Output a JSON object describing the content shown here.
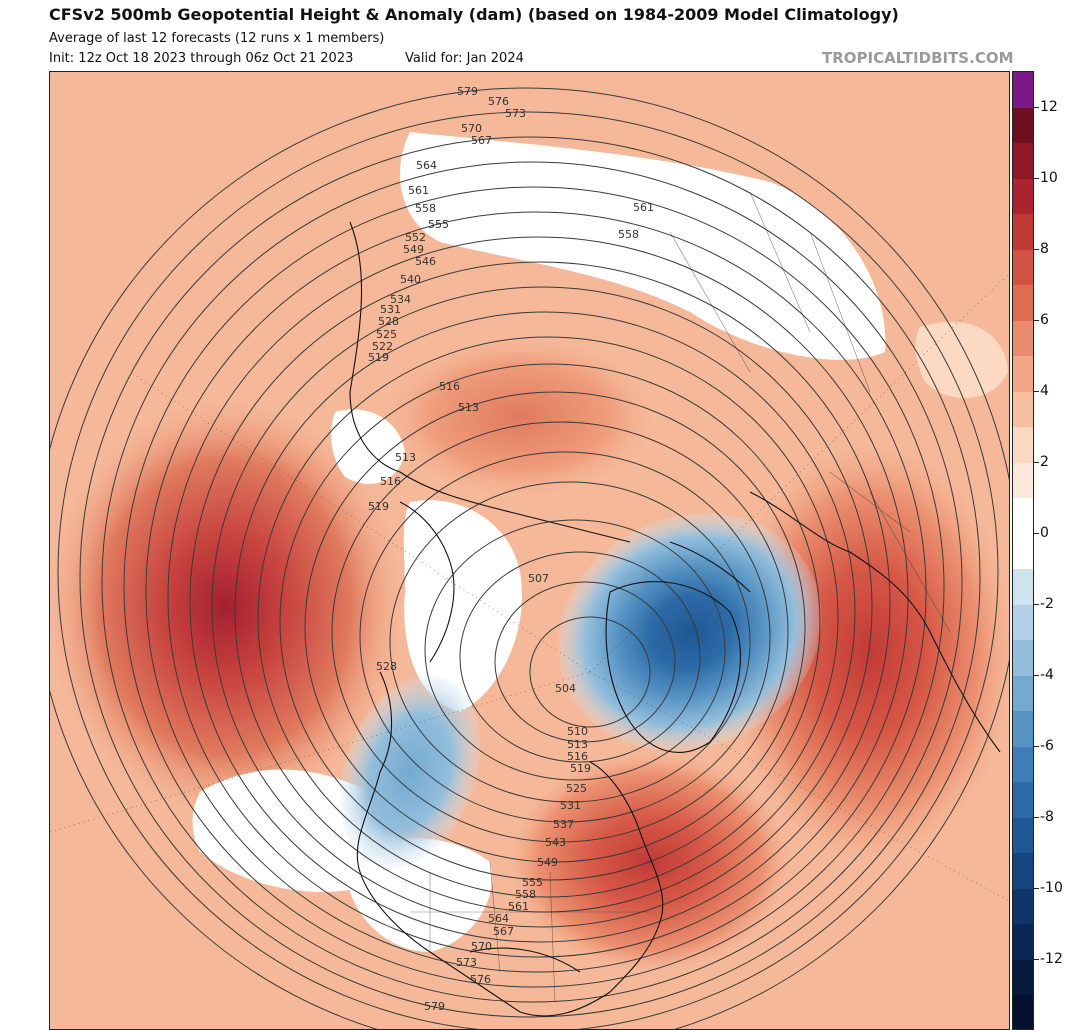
{
  "header": {
    "title": "CFSv2 500mb Geopotential Height & Anomaly (dam) (based on 1984-2009 Model Climatology)",
    "subtitle": "Average of last 12 forecasts (12 runs x 1 members)",
    "init": "Init: 12z Oct 18 2023 through 06z Oct 21 2023",
    "valid": "Valid for: Jan 2024",
    "brand": "TROPICALTIDBITS.COM"
  },
  "colorbar": {
    "segments": [
      {
        "value": 13,
        "color": "#7a1a86"
      },
      {
        "value": 12,
        "color": "#6e0e1e"
      },
      {
        "value": 11,
        "color": "#901726"
      },
      {
        "value": 10,
        "color": "#ad2230"
      },
      {
        "value": 9,
        "color": "#c23a37"
      },
      {
        "value": 8,
        "color": "#d35342"
      },
      {
        "value": 7,
        "color": "#df6d52"
      },
      {
        "value": 6,
        "color": "#e98c6c"
      },
      {
        "value": 5,
        "color": "#f2a785"
      },
      {
        "value": 4,
        "color": "#f7c0a1"
      },
      {
        "value": 3,
        "color": "#fbd9c2"
      },
      {
        "value": 2,
        "color": "#fde9dc"
      },
      {
        "value": 1,
        "color": "#ffffff"
      },
      {
        "value": 0,
        "color": "#ffffff"
      },
      {
        "value": -1,
        "color": "#cfe2ef"
      },
      {
        "value": -2,
        "color": "#b2d1e6"
      },
      {
        "value": -3,
        "color": "#93bedc"
      },
      {
        "value": -4,
        "color": "#74a9d0"
      },
      {
        "value": -5,
        "color": "#5693c3"
      },
      {
        "value": -6,
        "color": "#3f7eb7"
      },
      {
        "value": -7,
        "color": "#2c6aa7"
      },
      {
        "value": -8,
        "color": "#1f5894"
      },
      {
        "value": -9,
        "color": "#164680"
      },
      {
        "value": -10,
        "color": "#0f356a"
      },
      {
        "value": -11,
        "color": "#0a2654"
      },
      {
        "value": -12,
        "color": "#061a40"
      },
      {
        "value": -13,
        "color": "#041030"
      }
    ],
    "labels": [
      "12",
      "10",
      "8",
      "6",
      "4",
      "2",
      "0",
      "-2",
      "-4",
      "-6",
      "-8",
      "-10",
      "-12"
    ]
  },
  "contour_labels": [
    "579",
    "576",
    "573",
    "570",
    "567",
    "564",
    "561",
    "558",
    "555",
    "552",
    "549",
    "546",
    "540",
    "534",
    "531",
    "528",
    "525",
    "522",
    "519",
    "516",
    "513",
    "513",
    "516",
    "519",
    "507",
    "528",
    "504",
    "510",
    "513",
    "516",
    "519",
    "525",
    "531",
    "537",
    "543",
    "549",
    "555",
    "558",
    "561",
    "564",
    "567",
    "570",
    "573",
    "576",
    "579",
    "561",
    "558"
  ]
}
